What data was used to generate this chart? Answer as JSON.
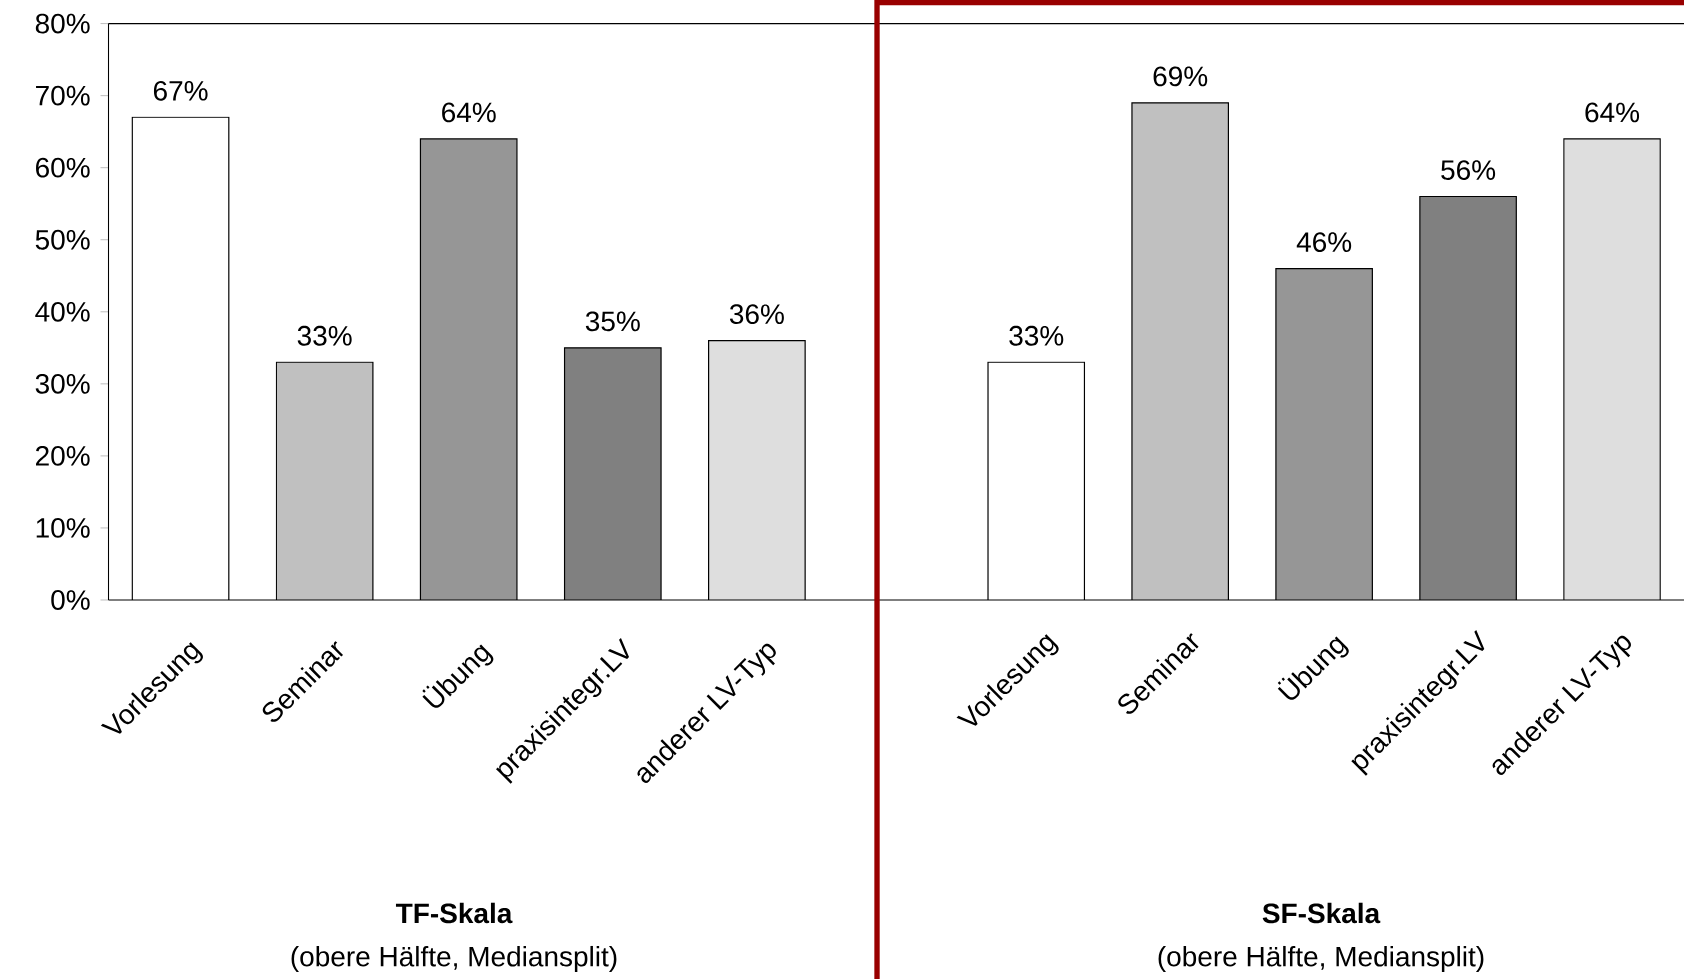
{
  "chart_data": [
    {
      "type": "bar",
      "xlabel": "TF-Skala",
      "annotations": [
        "(obere Hälfte, Mediansplit)"
      ],
      "categories": [
        "Vorlesung",
        "Seminar",
        "Übung",
        "praxisintegr.LV",
        "anderer LV-Typ"
      ],
      "values": [
        67,
        33,
        64,
        35,
        36
      ],
      "colors": [
        "#ffffff",
        "#c0c0c0",
        "#969696",
        "#808080",
        "#dedede"
      ],
      "value_labels": [
        "67%",
        "33%",
        "64%",
        "35%",
        "36%"
      ],
      "ylim": [
        0,
        80
      ],
      "yticks": [
        {
          "value": 0,
          "label": "0%"
        },
        {
          "value": 10,
          "label": "10%"
        },
        {
          "value": 20,
          "label": "20%"
        },
        {
          "value": 30,
          "label": "30%"
        },
        {
          "value": 40,
          "label": "40%"
        },
        {
          "value": 50,
          "label": "50%"
        },
        {
          "value": 60,
          "label": "60%"
        },
        {
          "value": 70,
          "label": "70%"
        },
        {
          "value": 80,
          "label": "80%"
        }
      ]
    },
    {
      "type": "bar",
      "xlabel": "SF-Skala",
      "annotations": [
        "(obere Hälfte, Mediansplit)"
      ],
      "categories": [
        "Vorlesung",
        "Seminar",
        "Übung",
        "praxisintegr.LV",
        "anderer LV-Typ"
      ],
      "values": [
        33,
        69,
        46,
        56,
        64
      ],
      "colors": [
        "#ffffff",
        "#c0c0c0",
        "#969696",
        "#808080",
        "#dedede"
      ],
      "value_labels": [
        "33%",
        "69%",
        "46%",
        "56%",
        "64%"
      ],
      "ylim": [
        0,
        80
      ],
      "tick_labels": "x"
    }
  ]
}
